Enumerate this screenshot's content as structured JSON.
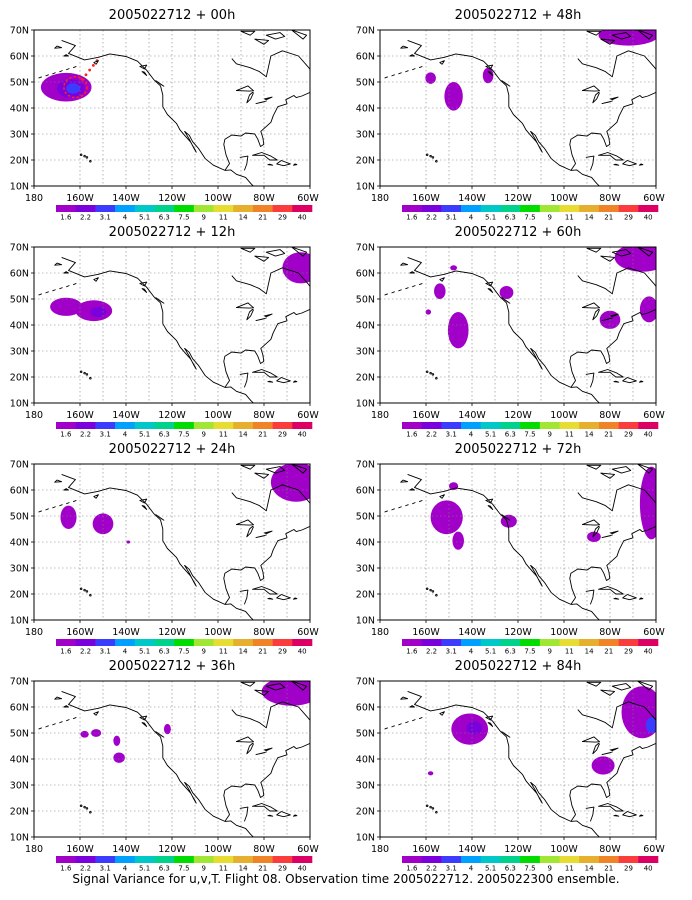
{
  "figure": {
    "footer": "Signal Variance for u,v,T. Flight 08. Observation time 2005022712. 2005022300 ensemble.",
    "lat_labels": [
      "70N",
      "60N",
      "50N",
      "40N",
      "30N",
      "20N",
      "10N"
    ],
    "lon_labels": [
      "180",
      "160W",
      "140W",
      "120W",
      "100W",
      "80W",
      "60W"
    ],
    "colorbar": {
      "labels": [
        "1.6",
        "2.2",
        "3.1",
        "4",
        "5.1",
        "6.3",
        "7.5",
        "9",
        "11",
        "14",
        "21",
        "29",
        "40"
      ],
      "colors": [
        "#a000c8",
        "#7a00dc",
        "#3c3cff",
        "#00a0ff",
        "#00c8c8",
        "#00d28c",
        "#00dc00",
        "#a0e632",
        "#e6dc32",
        "#e6af2d",
        "#f08228",
        "#fa3c3c",
        "#dc0064"
      ]
    },
    "shade_colors": {
      "level1": "#a000c8",
      "level2": "#7a00dc",
      "level3": "#3c3cff"
    },
    "map_extent": {
      "lon_min": -180,
      "lon_max": -60,
      "lat_min": 10,
      "lat_max": 70
    }
  },
  "panels": [
    {
      "title": "2005022712 + 00h",
      "blobs": [
        {
          "lon": -166,
          "lat": 48,
          "rlon": 11,
          "rlat": 5.5,
          "level": 1
        },
        {
          "lon": -164,
          "lat": 47.5,
          "rlon": 6,
          "rlat": 3.5,
          "level": 2
        },
        {
          "lon": -163,
          "lat": 47.5,
          "rlon": 3,
          "rlat": 2,
          "level": 3
        }
      ],
      "dashed": [
        {
          "lon": -162,
          "lat": 48,
          "rlon": 5,
          "rlat": 4
        }
      ]
    },
    {
      "title": "2005022712 + 12h",
      "blobs": [
        {
          "lon": -166,
          "lat": 47,
          "rlon": 7,
          "rlat": 3.5,
          "level": 1
        },
        {
          "lon": -154,
          "lat": 45.5,
          "rlon": 8,
          "rlat": 4,
          "level": 1
        },
        {
          "lon": -152,
          "lat": 45,
          "rlon": 3.5,
          "rlat": 2,
          "level": 2
        },
        {
          "lon": -64,
          "lat": 62,
          "rlon": 8,
          "rlat": 6,
          "level": 1
        }
      ]
    },
    {
      "title": "2005022712 + 24h",
      "blobs": [
        {
          "lon": -165,
          "lat": 49.5,
          "rlon": 3.5,
          "rlat": 4.5,
          "level": 1
        },
        {
          "lon": -150,
          "lat": 47,
          "rlon": 4.5,
          "rlat": 4,
          "level": 1
        },
        {
          "lon": -139,
          "lat": 40,
          "rlon": 0.8,
          "rlat": 0.6,
          "level": 1
        },
        {
          "lon": -66,
          "lat": 63,
          "rlon": 11,
          "rlat": 7.5,
          "level": 1
        }
      ]
    },
    {
      "title": "2005022712 + 36h",
      "blobs": [
        {
          "lon": -158,
          "lat": 49.5,
          "rlon": 1.8,
          "rlat": 1.3,
          "level": 1
        },
        {
          "lon": -153,
          "lat": 50,
          "rlon": 2.2,
          "rlat": 1.5,
          "level": 1
        },
        {
          "lon": -144,
          "lat": 47,
          "rlon": 1.5,
          "rlat": 2,
          "level": 1
        },
        {
          "lon": -143,
          "lat": 40.5,
          "rlon": 2.5,
          "rlat": 2,
          "level": 1
        },
        {
          "lon": -122,
          "lat": 51.5,
          "rlon": 1.5,
          "rlat": 2,
          "level": 1
        },
        {
          "lon": -68,
          "lat": 66,
          "rlon": 13,
          "rlat": 5.5,
          "level": 1
        }
      ]
    },
    {
      "title": "2005022712 + 48h",
      "blobs": [
        {
          "lon": -158,
          "lat": 51.5,
          "rlon": 2.3,
          "rlat": 2.2,
          "level": 1
        },
        {
          "lon": -133,
          "lat": 52.5,
          "rlon": 2.3,
          "rlat": 3,
          "level": 1
        },
        {
          "lon": -148,
          "lat": 44.5,
          "rlon": 4,
          "rlat": 5.5,
          "level": 1
        },
        {
          "lon": -72,
          "lat": 68,
          "rlon": 13,
          "rlat": 4,
          "level": 1
        }
      ]
    },
    {
      "title": "2005022712 + 60h",
      "blobs": [
        {
          "lon": -146,
          "lat": 38,
          "rlon": 4.5,
          "rlat": 7,
          "level": 1
        },
        {
          "lon": -154,
          "lat": 53,
          "rlon": 2.5,
          "rlat": 3,
          "level": 1
        },
        {
          "lon": -159,
          "lat": 45,
          "rlon": 1.2,
          "rlat": 1,
          "level": 1
        },
        {
          "lon": -148,
          "lat": 62,
          "rlon": 1.5,
          "rlat": 1,
          "level": 1
        },
        {
          "lon": -125,
          "lat": 52.5,
          "rlon": 3,
          "rlat": 2.5,
          "level": 1
        },
        {
          "lon": -80,
          "lat": 42,
          "rlon": 4.5,
          "rlat": 3.5,
          "level": 1
        },
        {
          "lon": -63,
          "lat": 46,
          "rlon": 4,
          "rlat": 5,
          "level": 1
        },
        {
          "lon": -66,
          "lat": 66,
          "rlon": 12,
          "rlat": 5.5,
          "level": 1
        }
      ]
    },
    {
      "title": "2005022712 + 72h",
      "blobs": [
        {
          "lon": -151,
          "lat": 49.5,
          "rlon": 7,
          "rlat": 6.5,
          "level": 1
        },
        {
          "lon": -146,
          "lat": 40.5,
          "rlon": 2.5,
          "rlat": 3.5,
          "level": 1
        },
        {
          "lon": -148,
          "lat": 61.5,
          "rlon": 2,
          "rlat": 1.5,
          "level": 1
        },
        {
          "lon": -124,
          "lat": 48,
          "rlon": 3.5,
          "rlat": 2.5,
          "level": 1
        },
        {
          "lon": -87,
          "lat": 42,
          "rlon": 3,
          "rlat": 2,
          "level": 1
        },
        {
          "lon": -62,
          "lat": 55,
          "rlon": 5,
          "rlat": 14,
          "level": 1
        }
      ]
    },
    {
      "title": "2005022712 + 84h",
      "blobs": [
        {
          "lon": -141,
          "lat": 51.5,
          "rlon": 8,
          "rlat": 6,
          "level": 1
        },
        {
          "lon": -139,
          "lat": 52,
          "rlon": 3.5,
          "rlat": 2.5,
          "level": 2
        },
        {
          "lon": -158,
          "lat": 34.5,
          "rlon": 1.2,
          "rlat": 0.8,
          "level": 1
        },
        {
          "lon": -83,
          "lat": 37.5,
          "rlon": 5,
          "rlat": 3.5,
          "level": 1
        },
        {
          "lon": -66,
          "lat": 58,
          "rlon": 9,
          "rlat": 10,
          "level": 1
        },
        {
          "lon": -62,
          "lat": 53,
          "rlon": 2.5,
          "rlat": 3,
          "level": 3
        }
      ]
    }
  ]
}
